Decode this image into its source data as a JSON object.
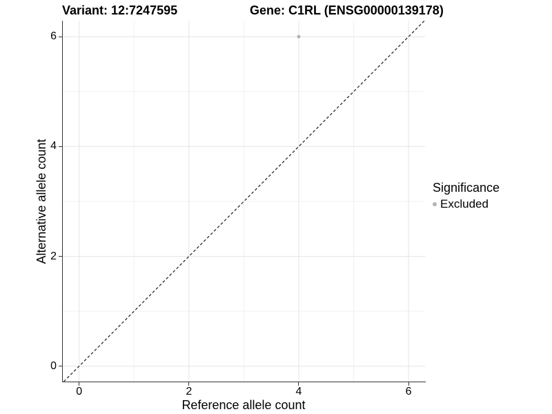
{
  "titles": {
    "variant": "Variant: 12:7247595",
    "gene": "Gene: C1RL (ENSG00000139178)"
  },
  "legend": {
    "title": "Significance",
    "items": [
      {
        "label": "Excluded",
        "color": "#b3b3b3"
      }
    ]
  },
  "chart_data": {
    "type": "scatter",
    "xlabel": "Reference allele count",
    "ylabel": "Alternative allele count",
    "xlim": [
      -0.31,
      6.3
    ],
    "ylim": [
      -0.28,
      6.29
    ],
    "xticks": [
      0,
      2,
      4,
      6
    ],
    "yticks": [
      0,
      2,
      4,
      6
    ],
    "x_minor_gridlines": [
      1,
      3,
      5
    ],
    "y_minor_gridlines": [
      1,
      3,
      5
    ],
    "grid": "major+minor",
    "legend_position": "right",
    "series": [
      {
        "name": "Excluded",
        "color": "#b3b3b3",
        "points": [
          {
            "x": 4,
            "y": 6
          }
        ]
      }
    ],
    "reference_line": {
      "kind": "identity y=x",
      "style": "dashed",
      "color": "#1a1a1a",
      "from": [
        -0.28,
        -0.28
      ],
      "to": [
        6.29,
        6.29
      ]
    },
    "colors": {
      "grid_major": "#e4e4e4",
      "grid_minor": "#f0f0f0",
      "axis_line": "#333333"
    }
  }
}
